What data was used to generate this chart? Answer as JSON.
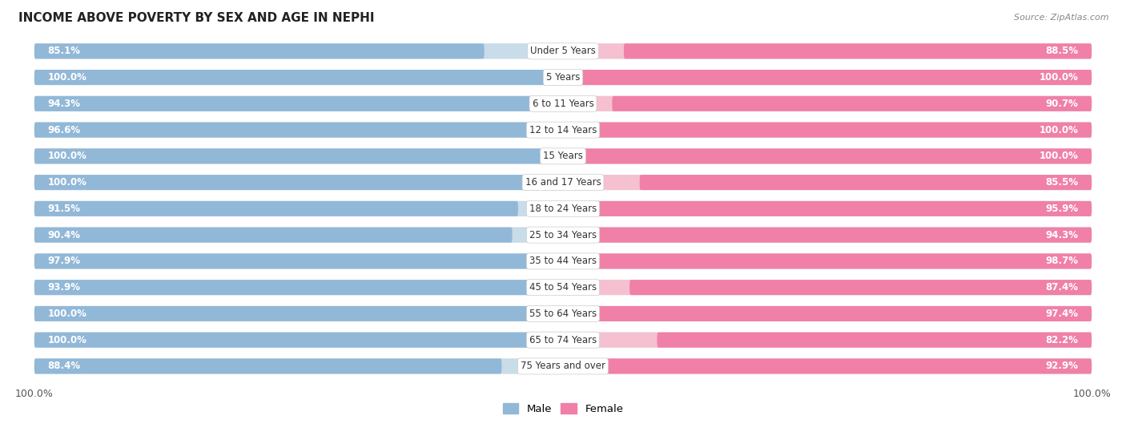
{
  "title": "INCOME ABOVE POVERTY BY SEX AND AGE IN NEPHI",
  "source": "Source: ZipAtlas.com",
  "categories": [
    "Under 5 Years",
    "5 Years",
    "6 to 11 Years",
    "12 to 14 Years",
    "15 Years",
    "16 and 17 Years",
    "18 to 24 Years",
    "25 to 34 Years",
    "35 to 44 Years",
    "45 to 54 Years",
    "55 to 64 Years",
    "65 to 74 Years",
    "75 Years and over"
  ],
  "male_values": [
    85.1,
    100.0,
    94.3,
    96.6,
    100.0,
    100.0,
    91.5,
    90.4,
    97.9,
    93.9,
    100.0,
    100.0,
    88.4
  ],
  "female_values": [
    88.5,
    100.0,
    90.7,
    100.0,
    100.0,
    85.5,
    95.9,
    94.3,
    98.7,
    87.4,
    97.4,
    82.2,
    92.9
  ],
  "male_color": "#92b8d8",
  "male_bg_color": "#c8dcea",
  "female_color": "#f080a8",
  "female_bg_color": "#f5c0d0",
  "male_label": "Male",
  "female_label": "Female",
  "background_color": "#ffffff",
  "row_bg_color": "#e0e0e0",
  "label_bg_color": "#f0f0f0",
  "axis_label_bottom": "100.0%",
  "text_color_white": "#ffffff",
  "text_color_dark": "#555555"
}
